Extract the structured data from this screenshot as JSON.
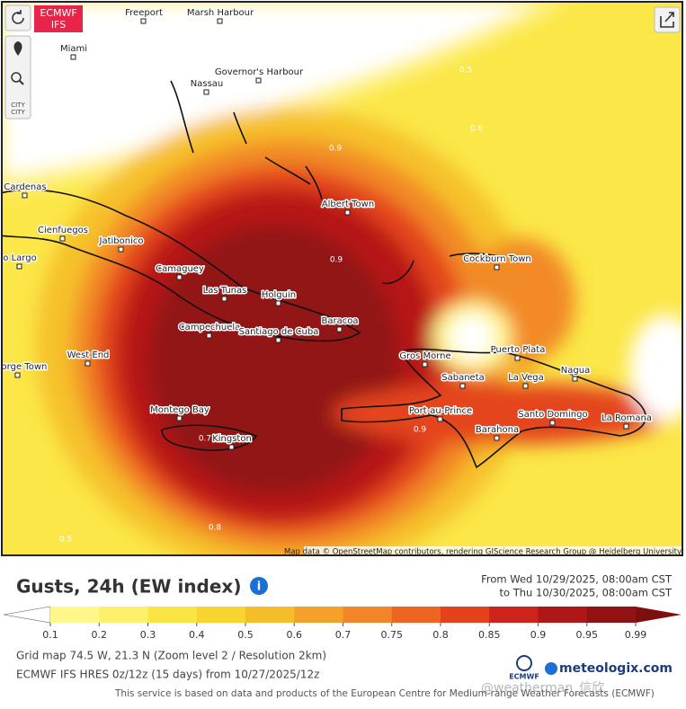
{
  "map": {
    "badge": [
      "ECMWF",
      "IFS"
    ],
    "city_control": [
      "CITY",
      "CITY"
    ],
    "places": [
      "Freeport",
      "Marsh Harbour",
      "Miami",
      "Nassau",
      "Governor's Harbour",
      "Cardenas",
      "Cienfuegos",
      "Jatibonico",
      "o Largo",
      "Camaguey",
      "Las Tunas",
      "Holguin",
      "Albert Town",
      "Cockburn Town",
      "Campechuela",
      "Santiago de Cuba",
      "Baracoa",
      "West End",
      "George Town",
      "Gros Morne",
      "Puerto Plata",
      "Nagua",
      "Sabaneta",
      "La Vega",
      "Port-au-Prince",
      "Santo Domingo",
      "La Romana",
      "Barahona",
      "Montego Bay",
      "Kingston"
    ],
    "contours": [
      "0.5",
      "0.6",
      "0.9",
      "0.9",
      "0.7",
      "0.9",
      "0.8",
      "0.5"
    ],
    "attribution": "Map data © OpenStreetMap contributors, rendering GIScience Research Group @ Heidelberg University"
  },
  "header": {
    "title": "Gusts, 24h (EW index)",
    "from": "From Wed 10/29/2025, 08:00am CST",
    "to": "to Thu 10/30/2025, 08:00am CST"
  },
  "legend": {
    "labels": [
      "0.1",
      "0.2",
      "0.3",
      "0.4",
      "0.5",
      "0.6",
      "0.7",
      "0.75",
      "0.8",
      "0.85",
      "0.9",
      "0.95",
      "0.99"
    ],
    "colors": [
      "#fff68c",
      "#fdf06a",
      "#fbe544",
      "#f8d52e",
      "#f6bd2b",
      "#f4a12a",
      "#f28527",
      "#ee6522",
      "#e4421c",
      "#cc231a",
      "#ad1717",
      "#921313"
    ],
    "low_color": "#ffffff",
    "high_color": "#7d0f0f"
  },
  "footer": {
    "grid": "Grid map 74.5 W, 21.3 N (Zoom level 2 / Resolution 2km)",
    "model": "ECMWF IFS HRES 0z/12z  (15 days)  from 10/27/2025/12z",
    "notice": "This service is based on data and products of the European Centre for Medium-range Weather Forecasts (ECMWF)",
    "ecmwf": "ECMWF",
    "brand": "meteologix.com",
    "watermark": "@weatherman_信欣"
  }
}
